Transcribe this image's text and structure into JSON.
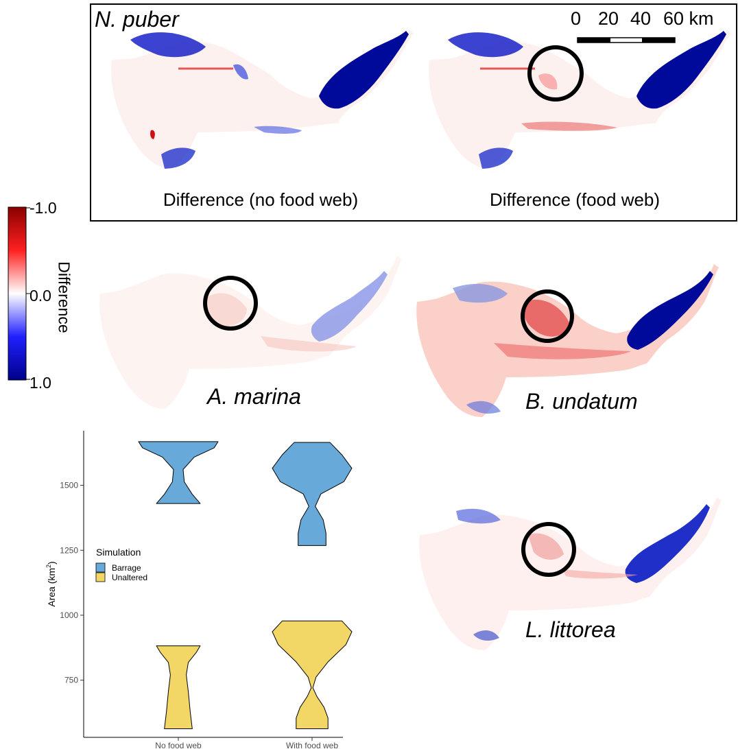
{
  "top_panel": {
    "species": "N. puber",
    "scalebar": {
      "ticks": [
        "0",
        "20",
        "40",
        "60 km"
      ]
    },
    "map_left_label": "Difference (no food web)",
    "map_right_label": "Difference (food web)"
  },
  "colorbar": {
    "title": "Difference",
    "ticks": [
      "-1.0",
      "0.0",
      "1.0"
    ],
    "colors": {
      "low": "#00008b",
      "mid": "#ffffff",
      "high": "#8b0000",
      "red": "#ff2020",
      "blue": "#2020ff"
    }
  },
  "maps": {
    "a_marina": {
      "label": "A. marina"
    },
    "b_undatum": {
      "label": "B. undatum"
    },
    "l_littorea": {
      "label": "L. littorea"
    }
  },
  "chart_data": {
    "type": "violin",
    "categories": [
      "No food web",
      "With food web"
    ],
    "ylabel": "Area",
    "ylabel_unit_base": "km",
    "ylabel_unit_exp": "2",
    "yticks": [
      750,
      1000,
      1250,
      1500
    ],
    "ylim": [
      530,
      1710
    ],
    "legend": {
      "title": "Simulation",
      "placement": "left-middle"
    },
    "series": [
      {
        "name": "Barrage",
        "color": "#67a9d9",
        "violins": [
          {
            "min": 1430,
            "max": 1668
          },
          {
            "min": 1268,
            "max": 1665
          }
        ]
      },
      {
        "name": "Unaltered",
        "color": "#f3d766",
        "violins": [
          {
            "min": 563,
            "max": 882
          },
          {
            "min": 563,
            "max": 978
          }
        ]
      }
    ]
  }
}
